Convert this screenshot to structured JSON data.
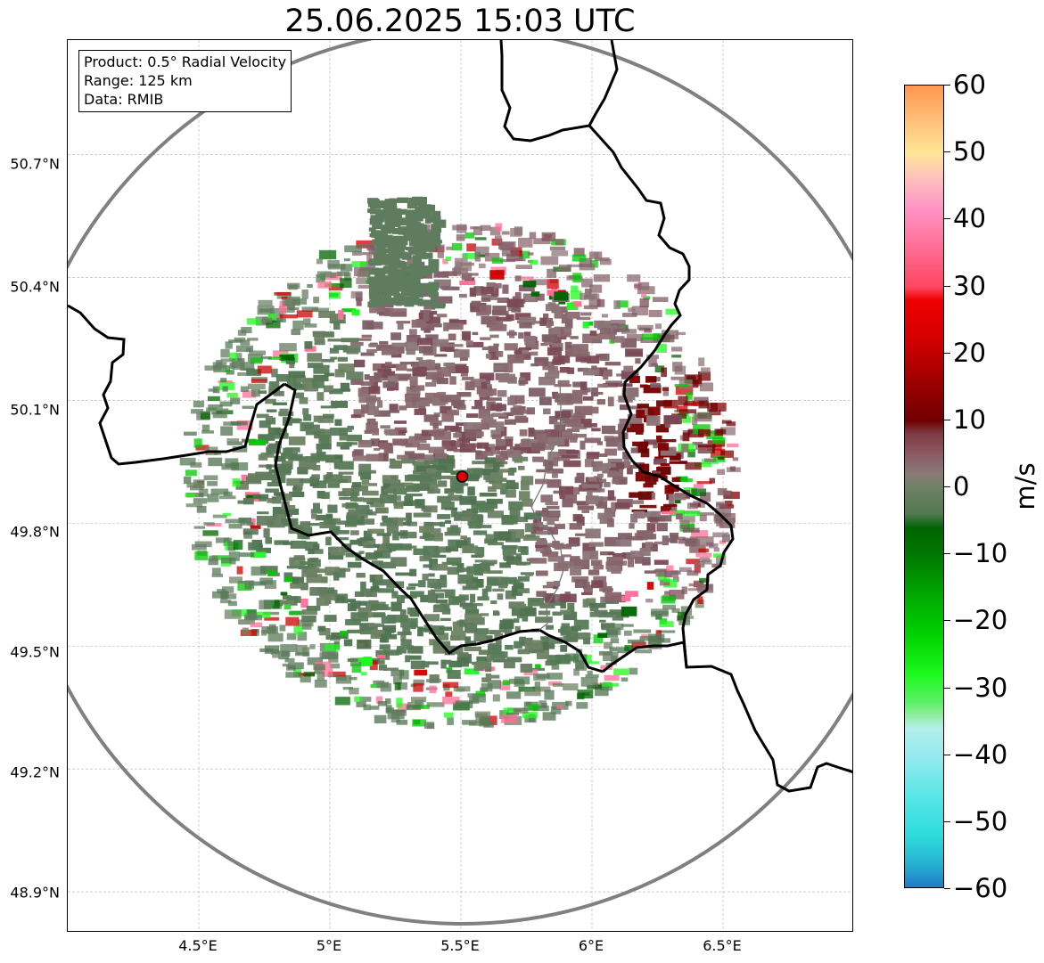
{
  "title": "25.06.2025 15:03 UTC",
  "info_box": {
    "product": "Product: 0.5° Radial Velocity",
    "range": "Range: 125 km",
    "data": "Data: RMIB"
  },
  "lat_labels": [
    "50.7°N",
    "50.4°N",
    "50.1°N",
    "49.8°N",
    "49.5°N",
    "49.2°N",
    "48.9°N"
  ],
  "lon_labels": [
    "4.5°E",
    "5°E",
    "5.5°E",
    "6°E",
    "6.5°E"
  ],
  "colorbar": {
    "unit": "m/s",
    "tick_labels": [
      "60",
      "50",
      "40",
      "30",
      "20",
      "10",
      "0",
      "−10",
      "−20",
      "−30",
      "−40",
      "−50",
      "−60"
    ],
    "vmin": -60,
    "vmax": 60,
    "stops": [
      {
        "v": -60,
        "color": "#1f78c8"
      },
      {
        "v": -56,
        "color": "#28b4d2"
      },
      {
        "v": -52,
        "color": "#2ddcdc"
      },
      {
        "v": -46,
        "color": "#5ae6e6"
      },
      {
        "v": -40,
        "color": "#96eaee"
      },
      {
        "v": -36,
        "color": "#b4eeee"
      },
      {
        "v": -34,
        "color": "#90eea0"
      },
      {
        "v": -32,
        "color": "#5af064"
      },
      {
        "v": -28,
        "color": "#1efa1e"
      },
      {
        "v": -22,
        "color": "#00d200"
      },
      {
        "v": -16,
        "color": "#00a800"
      },
      {
        "v": -10,
        "color": "#007800"
      },
      {
        "v": -6,
        "color": "#006400"
      },
      {
        "v": -4,
        "color": "#507850"
      },
      {
        "v": 0,
        "color": "#6e8264"
      },
      {
        "v": 2,
        "color": "#8a7a78"
      },
      {
        "v": 5,
        "color": "#8c5a64"
      },
      {
        "v": 8,
        "color": "#7e3c46"
      },
      {
        "v": 10,
        "color": "#700000"
      },
      {
        "v": 16,
        "color": "#a00000"
      },
      {
        "v": 22,
        "color": "#d20000"
      },
      {
        "v": 28,
        "color": "#f00000"
      },
      {
        "v": 30,
        "color": "#ff4660"
      },
      {
        "v": 36,
        "color": "#ff6e96"
      },
      {
        "v": 42,
        "color": "#ff96c8"
      },
      {
        "v": 46,
        "color": "#ffbebe"
      },
      {
        "v": 50,
        "color": "#ffe696"
      },
      {
        "v": 55,
        "color": "#ffbe78"
      },
      {
        "v": 60,
        "color": "#ff9650"
      }
    ]
  },
  "radar_site": {
    "lon": 5.505,
    "lat": 49.914
  },
  "map_extent": {
    "lon_min": 4.0,
    "lon_max": 7.0,
    "lat_min": 48.8,
    "lat_max": 50.98
  },
  "range_circle": {
    "center_lon": 5.505,
    "center_lat": 49.914
  },
  "colors": {
    "range_ring": "#808080",
    "border": "#000000",
    "grid": "#b0b0b0",
    "radar_site_fill": "#e00000",
    "background": "#ffffff"
  }
}
